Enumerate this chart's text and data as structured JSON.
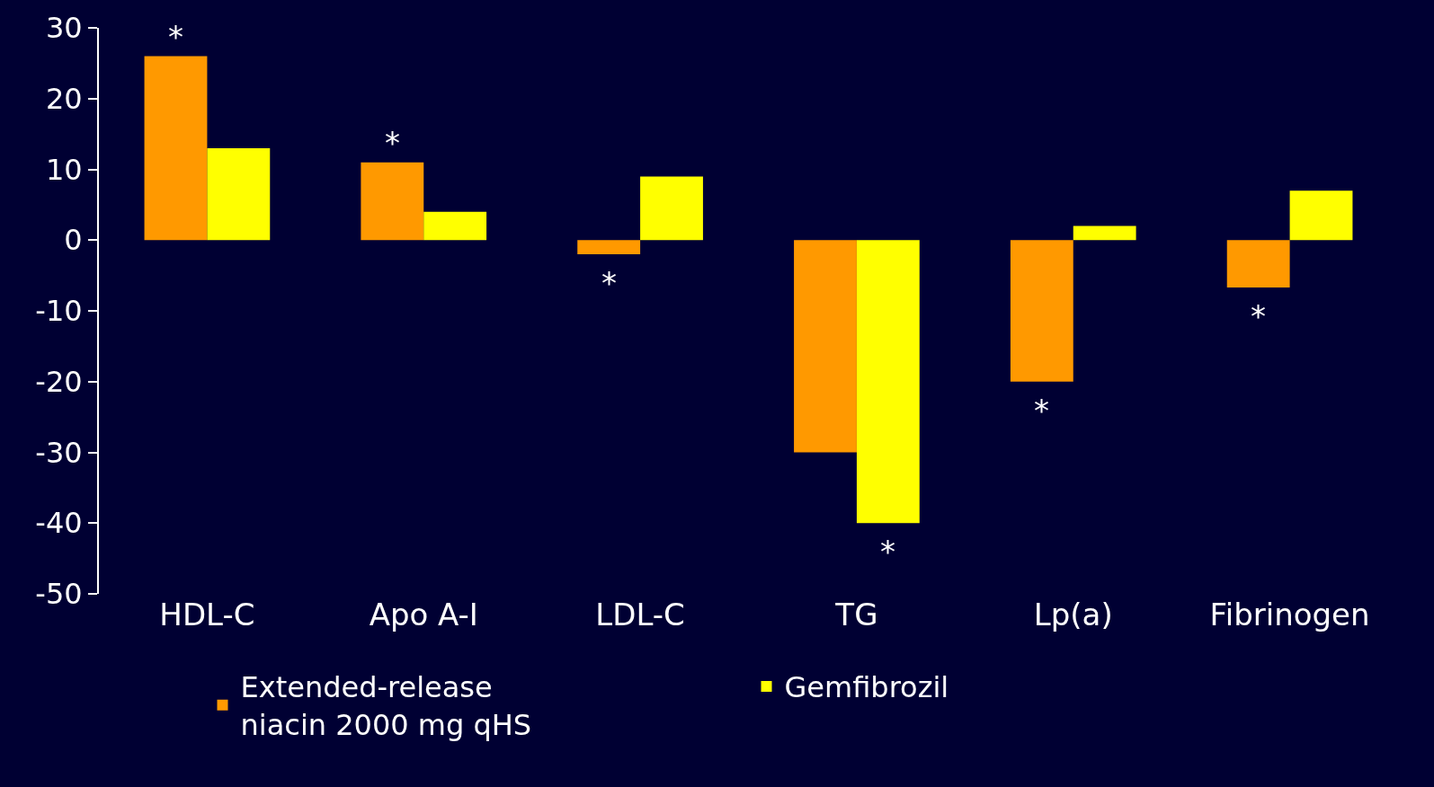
{
  "chart_data": {
    "type": "bar",
    "categories": [
      "HDL-C",
      "Apo A-I",
      "LDL-C",
      "TG",
      "Lp(a)",
      "Fibrinogen"
    ],
    "series": [
      {
        "name": "Extended-release niacin 2000 mg qHS",
        "color": "#ff9900",
        "values": [
          26,
          11,
          -2,
          -30,
          -20,
          -6.7
        ]
      },
      {
        "name": "Gemfibrozil",
        "color": "#ffff00",
        "values": [
          13,
          4,
          9,
          -40,
          2,
          7
        ]
      }
    ],
    "ylim": [
      -50,
      30
    ],
    "yticks": [
      -50,
      -40,
      -30,
      -20,
      -10,
      0,
      10,
      20,
      30
    ],
    "annotations": [
      {
        "text": "*",
        "x": "HDL-C",
        "y": 26
      },
      {
        "text": "*",
        "x": "Apo A-I",
        "y": 11
      },
      {
        "text": "*",
        "x": "LDL-C",
        "y": -2
      },
      {
        "text": "*",
        "x": "TG",
        "y": -40
      },
      {
        "text": "*",
        "x": "Lp(a)",
        "y": -20
      },
      {
        "text": "*",
        "x": "Fibrinogen",
        "y": -6.7
      }
    ],
    "grid": false,
    "legend": "bottom"
  }
}
